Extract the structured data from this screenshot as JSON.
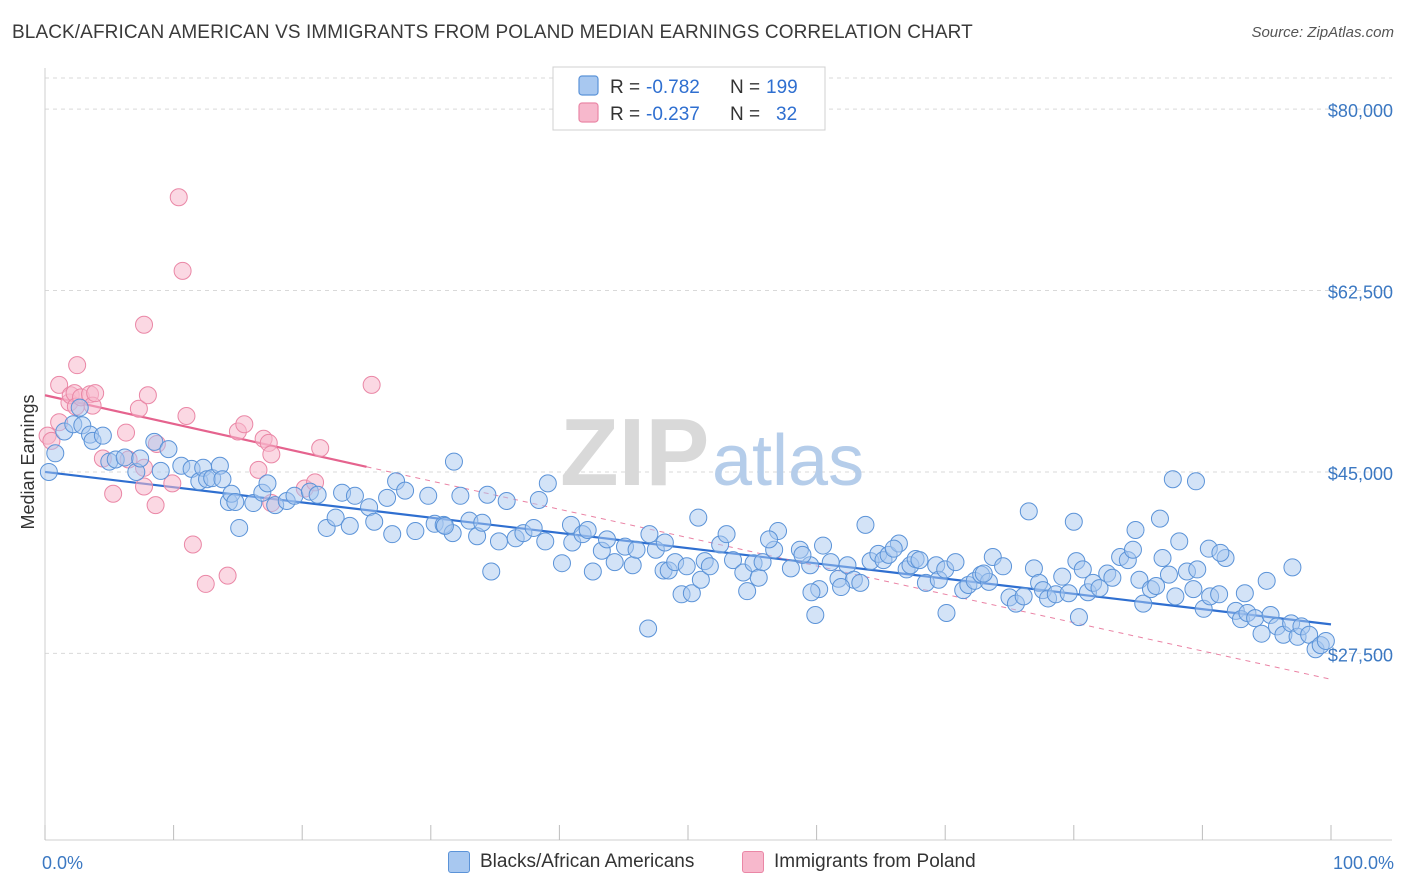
{
  "header": {
    "title": "BLACK/AFRICAN AMERICAN VS IMMIGRANTS FROM POLAND MEDIAN EARNINGS CORRELATION CHART",
    "source": "Source: ZipAtlas.com"
  },
  "watermark": {
    "zip": "ZIP",
    "atlas": "atlas"
  },
  "colors": {
    "blue_fill": "#a8c8f0",
    "blue_stroke": "#5b93d8",
    "blue_line": "#2f6fd0",
    "pink_fill": "#f7b8cc",
    "pink_stroke": "#ea87a6",
    "pink_line": "#e5638e",
    "tick_label": "#3b78c2",
    "grid": "#d9d9d9"
  },
  "legend_top": {
    "rows": [
      {
        "r_label": "R =",
        "r_value": "-0.782",
        "n_label": "N =",
        "n_value": "199"
      },
      {
        "r_label": "R =",
        "r_value": "-0.237",
        "n_label": "N =",
        "n_value": "32"
      }
    ]
  },
  "legend_bottom": {
    "items": [
      {
        "label": "Blacks/African Americans"
      },
      {
        "label": "Immigrants from Poland"
      }
    ]
  },
  "chart_data": {
    "type": "scatter",
    "title": "BLACK/AFRICAN AMERICAN VS IMMIGRANTS FROM POLAND MEDIAN EARNINGS CORRELATION CHART",
    "xlabel": "",
    "ylabel": "Median Earnings",
    "xlim": [
      0,
      100
    ],
    "ylim": [
      9500,
      83000
    ],
    "x_tick_labels": [
      "0.0%",
      "100.0%"
    ],
    "y_ticks": [
      27500,
      45000,
      62500,
      80000
    ],
    "y_tick_labels": [
      "$27,500",
      "$45,000",
      "$62,500",
      "$80,000"
    ],
    "grid": true,
    "legend_placement": "top-center",
    "series": [
      {
        "name": "Blacks/African Americans",
        "r": -0.782,
        "n": 199,
        "trend": {
          "x": [
            0,
            100
          ],
          "y": [
            45000,
            30300
          ]
        },
        "points": [
          [
            0.3,
            45.0
          ],
          [
            0.8,
            46.8
          ],
          [
            1.5,
            48.9
          ],
          [
            2.2,
            49.6
          ],
          [
            2.7,
            51.2
          ],
          [
            2.9,
            49.5
          ],
          [
            3.5,
            48.6
          ],
          [
            3.7,
            48.0
          ],
          [
            4.5,
            48.5
          ],
          [
            5.0,
            46.0
          ],
          [
            5.5,
            46.2
          ],
          [
            6.2,
            46.4
          ],
          [
            7.1,
            45.0
          ],
          [
            7.4,
            46.3
          ],
          [
            8.5,
            47.9
          ],
          [
            9.0,
            45.1
          ],
          [
            9.6,
            47.2
          ],
          [
            10.6,
            45.6
          ],
          [
            11.4,
            45.3
          ],
          [
            12.0,
            44.1
          ],
          [
            12.3,
            45.4
          ],
          [
            12.6,
            44.3
          ],
          [
            13.0,
            44.4
          ],
          [
            13.6,
            45.6
          ],
          [
            13.8,
            44.3
          ],
          [
            14.3,
            42.1
          ],
          [
            14.5,
            42.9
          ],
          [
            14.8,
            42.1
          ],
          [
            15.1,
            39.6
          ],
          [
            16.2,
            42.0
          ],
          [
            16.9,
            43.0
          ],
          [
            17.3,
            43.9
          ],
          [
            17.9,
            41.8
          ],
          [
            18.8,
            42.2
          ],
          [
            19.4,
            42.7
          ],
          [
            20.6,
            43.1
          ],
          [
            21.2,
            42.8
          ],
          [
            21.9,
            39.6
          ],
          [
            22.6,
            40.6
          ],
          [
            23.1,
            43.0
          ],
          [
            23.7,
            39.8
          ],
          [
            24.1,
            42.7
          ],
          [
            25.2,
            41.6
          ],
          [
            25.6,
            40.2
          ],
          [
            26.6,
            42.5
          ],
          [
            27.0,
            39.0
          ],
          [
            27.3,
            44.1
          ],
          [
            28.0,
            43.2
          ],
          [
            28.8,
            39.3
          ],
          [
            29.8,
            42.7
          ],
          [
            30.3,
            40.0
          ],
          [
            31.0,
            39.9
          ],
          [
            31.7,
            39.1
          ],
          [
            31.8,
            46.0
          ],
          [
            32.3,
            42.7
          ],
          [
            33.0,
            40.3
          ],
          [
            33.6,
            38.8
          ],
          [
            34.0,
            40.1
          ],
          [
            34.4,
            42.8
          ],
          [
            35.3,
            38.3
          ],
          [
            35.9,
            42.2
          ],
          [
            36.6,
            38.6
          ],
          [
            37.2,
            39.1
          ],
          [
            38.0,
            39.6
          ],
          [
            38.4,
            42.3
          ],
          [
            39.1,
            43.9
          ],
          [
            40.2,
            36.2
          ],
          [
            40.9,
            39.9
          ],
          [
            41.0,
            38.2
          ],
          [
            41.8,
            39.0
          ],
          [
            42.2,
            39.4
          ],
          [
            43.3,
            37.4
          ],
          [
            43.7,
            38.5
          ],
          [
            44.3,
            36.3
          ],
          [
            45.1,
            37.8
          ],
          [
            45.7,
            36.0
          ],
          [
            46.0,
            37.5
          ],
          [
            47.0,
            39.0
          ],
          [
            47.5,
            37.5
          ],
          [
            48.1,
            35.5
          ],
          [
            48.2,
            38.2
          ],
          [
            48.5,
            35.5
          ],
          [
            49.0,
            36.3
          ],
          [
            49.5,
            33.2
          ],
          [
            49.9,
            35.9
          ],
          [
            50.3,
            33.3
          ],
          [
            51.0,
            34.6
          ],
          [
            51.3,
            36.4
          ],
          [
            51.7,
            35.9
          ],
          [
            52.5,
            38.0
          ],
          [
            53.0,
            39.0
          ],
          [
            53.5,
            36.5
          ],
          [
            54.3,
            35.3
          ],
          [
            55.1,
            36.2
          ],
          [
            55.5,
            34.8
          ],
          [
            55.8,
            36.3
          ],
          [
            56.7,
            37.5
          ],
          [
            57.0,
            39.3
          ],
          [
            58.0,
            35.7
          ],
          [
            58.7,
            37.5
          ],
          [
            59.5,
            36.0
          ],
          [
            60.2,
            33.7
          ],
          [
            60.5,
            37.9
          ],
          [
            61.1,
            36.3
          ],
          [
            61.7,
            34.7
          ],
          [
            62.4,
            36.0
          ],
          [
            62.9,
            34.6
          ],
          [
            63.4,
            34.3
          ],
          [
            64.2,
            36.4
          ],
          [
            64.8,
            37.1
          ],
          [
            65.2,
            36.5
          ],
          [
            65.6,
            37.0
          ],
          [
            66.4,
            38.1
          ],
          [
            67.0,
            35.6
          ],
          [
            67.3,
            36.0
          ],
          [
            67.7,
            36.6
          ],
          [
            68.5,
            34.3
          ],
          [
            69.3,
            36.0
          ],
          [
            69.5,
            34.6
          ],
          [
            70.0,
            35.6
          ],
          [
            70.8,
            36.3
          ],
          [
            71.4,
            33.6
          ],
          [
            71.8,
            34.1
          ],
          [
            72.3,
            34.5
          ],
          [
            72.8,
            35.1
          ],
          [
            73.4,
            34.4
          ],
          [
            73.7,
            36.8
          ],
          [
            74.5,
            35.9
          ],
          [
            75.0,
            32.9
          ],
          [
            75.5,
            32.3
          ],
          [
            76.1,
            33.0
          ],
          [
            76.9,
            35.7
          ],
          [
            77.3,
            34.3
          ],
          [
            77.6,
            33.6
          ],
          [
            78.0,
            32.8
          ],
          [
            78.6,
            33.2
          ],
          [
            79.1,
            34.9
          ],
          [
            79.6,
            33.3
          ],
          [
            80.2,
            36.4
          ],
          [
            80.7,
            35.6
          ],
          [
            81.1,
            33.4
          ],
          [
            81.5,
            34.3
          ],
          [
            82.0,
            33.8
          ],
          [
            82.6,
            35.2
          ],
          [
            83.0,
            34.8
          ],
          [
            83.6,
            36.8
          ],
          [
            84.2,
            36.5
          ],
          [
            84.6,
            37.5
          ],
          [
            85.1,
            34.6
          ],
          [
            85.4,
            32.3
          ],
          [
            86.0,
            33.7
          ],
          [
            86.4,
            34.0
          ],
          [
            86.9,
            36.7
          ],
          [
            87.4,
            35.1
          ],
          [
            87.9,
            33.0
          ],
          [
            88.2,
            38.3
          ],
          [
            88.8,
            35.4
          ],
          [
            89.3,
            33.7
          ],
          [
            89.6,
            35.6
          ],
          [
            90.1,
            31.8
          ],
          [
            90.6,
            33.0
          ],
          [
            91.3,
            33.2
          ],
          [
            91.8,
            36.7
          ],
          [
            92.6,
            31.6
          ],
          [
            93.0,
            30.8
          ],
          [
            93.5,
            31.4
          ],
          [
            94.1,
            30.9
          ],
          [
            94.6,
            29.4
          ],
          [
            95.3,
            31.2
          ],
          [
            95.8,
            30.1
          ],
          [
            96.3,
            29.3
          ],
          [
            96.9,
            30.4
          ],
          [
            97.4,
            29.1
          ],
          [
            97.7,
            30.1
          ],
          [
            98.3,
            29.3
          ],
          [
            98.8,
            27.9
          ],
          [
            99.2,
            28.3
          ],
          [
            99.6,
            28.7
          ],
          [
            46.9,
            29.9
          ],
          [
            59.6,
            33.4
          ],
          [
            31.1,
            39.8
          ],
          [
            34.7,
            35.4
          ],
          [
            38.9,
            38.3
          ],
          [
            42.6,
            35.4
          ],
          [
            50.8,
            40.6
          ],
          [
            54.6,
            33.5
          ],
          [
            56.3,
            38.5
          ],
          [
            58.9,
            37.0
          ],
          [
            61.9,
            33.9
          ],
          [
            63.8,
            39.9
          ],
          [
            66.0,
            37.6
          ],
          [
            68.0,
            36.5
          ],
          [
            73.0,
            35.2
          ],
          [
            76.5,
            41.2
          ],
          [
            80.0,
            40.2
          ],
          [
            84.8,
            39.4
          ],
          [
            86.7,
            40.5
          ],
          [
            90.5,
            37.6
          ],
          [
            91.4,
            37.2
          ],
          [
            93.3,
            33.3
          ],
          [
            95.0,
            34.5
          ],
          [
            97.0,
            35.8
          ],
          [
            59.9,
            31.2
          ],
          [
            70.1,
            31.4
          ],
          [
            80.4,
            31.0
          ],
          [
            87.7,
            44.3
          ],
          [
            89.5,
            44.1
          ]
        ]
      },
      {
        "name": "Immigrants from Poland",
        "r": -0.237,
        "n": 32,
        "trend": {
          "x": [
            0,
            25
          ],
          "y": [
            52400,
            45500
          ]
        },
        "trend_extension": {
          "x": [
            25,
            100
          ],
          "y": [
            45500,
            25000
          ]
        },
        "points": [
          [
            0.2,
            48.5
          ],
          [
            0.5,
            48.0
          ],
          [
            1.1,
            53.4
          ],
          [
            1.9,
            51.7
          ],
          [
            2.0,
            52.4
          ],
          [
            2.3,
            52.6
          ],
          [
            2.4,
            51.3
          ],
          [
            2.5,
            55.3
          ],
          [
            2.8,
            52.2
          ],
          [
            3.5,
            52.5
          ],
          [
            3.7,
            51.4
          ],
          [
            3.9,
            52.6
          ],
          [
            4.5,
            46.3
          ],
          [
            5.3,
            42.9
          ],
          [
            6.5,
            46.2
          ],
          [
            7.3,
            51.1
          ],
          [
            7.7,
            59.2
          ],
          [
            7.7,
            43.6
          ],
          [
            7.7,
            45.4
          ],
          [
            8.0,
            52.4
          ],
          [
            8.6,
            41.8
          ],
          [
            8.7,
            47.7
          ],
          [
            9.9,
            43.9
          ],
          [
            10.4,
            71.5
          ],
          [
            10.7,
            64.4
          ],
          [
            11.5,
            38.0
          ],
          [
            12.5,
            34.2
          ],
          [
            14.2,
            35.0
          ],
          [
            15.0,
            48.9
          ],
          [
            15.5,
            49.6
          ],
          [
            16.6,
            45.2
          ],
          [
            17.0,
            48.2
          ],
          [
            17.4,
            47.8
          ],
          [
            17.6,
            42.0
          ],
          [
            17.6,
            46.7
          ],
          [
            20.2,
            43.4
          ],
          [
            21.0,
            44.0
          ],
          [
            21.4,
            47.3
          ],
          [
            25.4,
            53.4
          ],
          [
            1.1,
            49.8
          ],
          [
            6.3,
            48.8
          ],
          [
            11.0,
            50.4
          ]
        ]
      }
    ]
  }
}
